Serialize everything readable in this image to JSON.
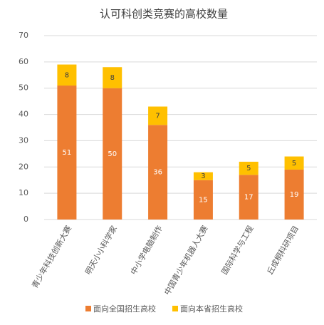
{
  "chart_data": {
    "type": "stacked-bar",
    "title": "认可科创类竞赛的高校数量",
    "categories": [
      "青少年科技创新大赛",
      "明天小小科学家",
      "中小学电脑制作",
      "中国青少年机器人大赛",
      "国际科学与工程",
      "丘成桐科研项目"
    ],
    "series": [
      {
        "name": "面向全国招生高校",
        "color": "#ed7d31",
        "values": [
          51,
          50,
          36,
          15,
          17,
          19
        ]
      },
      {
        "name": "面向本省招生高校",
        "color": "#ffc000",
        "values": [
          8,
          8,
          7,
          3,
          5,
          5
        ]
      }
    ],
    "ylim": [
      0,
      70
    ],
    "yticks": [
      0,
      10,
      20,
      30,
      40,
      50,
      60,
      70
    ],
    "grid": true,
    "legend": "bottom"
  }
}
